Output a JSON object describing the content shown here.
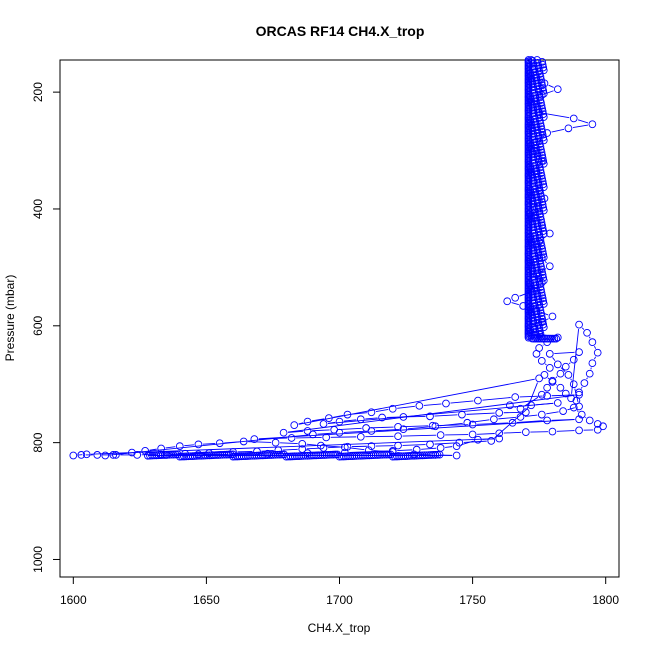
{
  "chart_data": {
    "type": "scatter",
    "title": "ORCAS RF14 CH4.X_trop",
    "xlabel": "CH4.X_trop",
    "ylabel": "Pressure (mbar)",
    "xlim": [
      1595,
      1805
    ],
    "ylim": [
      1030,
      145
    ],
    "y_reversed": true,
    "xticks": [
      1600,
      1650,
      1700,
      1750,
      1800
    ],
    "yticks": [
      200,
      400,
      600,
      800,
      1000
    ],
    "grid": false,
    "legend": "none",
    "point_style": "open-circle",
    "color": "#0000ff",
    "series": [
      {
        "points": [
          [
            1772,
            145
          ],
          [
            1773,
            160
          ],
          [
            1774,
            175
          ],
          [
            1777,
            185
          ],
          [
            1782,
            195
          ],
          [
            1776,
            205
          ],
          [
            1773,
            220
          ],
          [
            1775,
            235
          ],
          [
            1788,
            245
          ],
          [
            1795,
            255
          ],
          [
            1786,
            262
          ],
          [
            1778,
            270
          ],
          [
            1774,
            285
          ],
          [
            1773,
            300
          ],
          [
            1776,
            318
          ],
          [
            1774,
            335
          ],
          [
            1773,
            352
          ],
          [
            1775,
            368
          ],
          [
            1777,
            382
          ],
          [
            1774,
            398
          ],
          [
            1773,
            414
          ],
          [
            1776,
            428
          ],
          [
            1779,
            442
          ],
          [
            1775,
            456
          ],
          [
            1773,
            470
          ],
          [
            1776,
            484
          ],
          [
            1779,
            498
          ],
          [
            1774,
            512
          ],
          [
            1776,
            526
          ],
          [
            1773,
            540
          ],
          [
            1766,
            552
          ],
          [
            1763,
            558
          ],
          [
            1769,
            566
          ],
          [
            1774,
            574
          ],
          [
            1780,
            584
          ],
          [
            1776,
            594
          ],
          [
            1773,
            604
          ],
          [
            1775,
            614
          ],
          [
            1782,
            620
          ],
          [
            1778,
            628
          ],
          [
            1775,
            638
          ],
          [
            1774,
            648
          ],
          [
            1776,
            660
          ],
          [
            1779,
            672
          ],
          [
            1777,
            684
          ],
          [
            1780,
            696
          ],
          [
            1783,
            706
          ],
          [
            1785,
            716
          ],
          [
            1787,
            724
          ],
          [
            1790,
            598
          ],
          [
            1793,
            612
          ],
          [
            1795,
            628
          ],
          [
            1797,
            646
          ],
          [
            1795,
            664
          ],
          [
            1794,
            682
          ],
          [
            1792,
            698
          ],
          [
            1790,
            714
          ],
          [
            1789,
            728
          ],
          [
            1788,
            740
          ],
          [
            1791,
            752
          ],
          [
            1794,
            762
          ],
          [
            1797,
            768
          ],
          [
            1799,
            772
          ],
          [
            1797,
            778
          ],
          [
            1790,
            779
          ],
          [
            1780,
            781
          ],
          [
            1770,
            782
          ],
          [
            1760,
            784
          ],
          [
            1750,
            786
          ],
          [
            1738,
            787
          ],
          [
            1722,
            789
          ],
          [
            1708,
            790
          ],
          [
            1695,
            791
          ],
          [
            1682,
            792
          ],
          [
            1668,
            794
          ],
          [
            1790,
            760
          ],
          [
            1778,
            762
          ],
          [
            1765,
            766
          ],
          [
            1750,
            769
          ],
          [
            1735,
            771
          ],
          [
            1722,
            773
          ],
          [
            1710,
            775
          ],
          [
            1698,
            778
          ],
          [
            1688,
            780
          ],
          [
            1679,
            783
          ],
          [
            1790,
            718
          ],
          [
            1778,
            720
          ],
          [
            1766,
            722
          ],
          [
            1752,
            728
          ],
          [
            1740,
            733
          ],
          [
            1730,
            737
          ],
          [
            1720,
            742
          ],
          [
            1712,
            748
          ],
          [
            1703,
            752
          ],
          [
            1696,
            758
          ],
          [
            1688,
            764
          ],
          [
            1683,
            770
          ],
          [
            1775,
            690
          ],
          [
            1770,
            748
          ],
          [
            1760,
            749
          ],
          [
            1746,
            752
          ],
          [
            1734,
            755
          ],
          [
            1724,
            756
          ],
          [
            1716,
            757
          ],
          [
            1708,
            760
          ],
          [
            1700,
            764
          ],
          [
            1694,
            768
          ],
          [
            1782,
            732
          ],
          [
            1772,
            736
          ],
          [
            1757,
            797
          ],
          [
            1745,
            800
          ],
          [
            1734,
            803
          ],
          [
            1722,
            805
          ],
          [
            1712,
            806
          ],
          [
            1703,
            807
          ],
          [
            1694,
            809
          ],
          [
            1686,
            811
          ],
          [
            1677,
            813
          ],
          [
            1669,
            815
          ],
          [
            1660,
            816
          ],
          [
            1651,
            818
          ],
          [
            1642,
            819
          ],
          [
            1633,
            820
          ],
          [
            1624,
            821
          ],
          [
            1616,
            821
          ],
          [
            1609,
            821
          ],
          [
            1603,
            821
          ],
          [
            1600,
            822
          ],
          [
            1605,
            820
          ],
          [
            1760,
            793
          ],
          [
            1752,
            795
          ],
          [
            1744,
            806
          ],
          [
            1738,
            809
          ],
          [
            1729,
            812
          ],
          [
            1720,
            814
          ],
          [
            1702,
            817
          ],
          [
            1688,
            818
          ],
          [
            1673,
            819
          ],
          [
            1660,
            820
          ],
          [
            1647,
            820
          ],
          [
            1635,
            821
          ],
          [
            1744,
            822
          ],
          [
            1736,
            821
          ],
          [
            1728,
            820
          ],
          [
            1720,
            816
          ],
          [
            1711,
            813
          ],
          [
            1702,
            808
          ],
          [
            1693,
            805
          ],
          [
            1686,
            802
          ],
          [
            1676,
            800
          ],
          [
            1664,
            798
          ],
          [
            1655,
            801
          ],
          [
            1647,
            803
          ],
          [
            1640,
            806
          ],
          [
            1633,
            810
          ],
          [
            1627,
            814
          ],
          [
            1622,
            817
          ],
          [
            1615,
            821
          ],
          [
            1612,
            822
          ],
          [
            1690,
            786
          ],
          [
            1700,
            783
          ],
          [
            1712,
            780
          ],
          [
            1724,
            777
          ],
          [
            1736,
            772
          ],
          [
            1748,
            766
          ],
          [
            1758,
            760
          ],
          [
            1768,
            756
          ],
          [
            1776,
            752
          ],
          [
            1784,
            746
          ],
          [
            1790,
            738
          ],
          [
            1788,
            700
          ],
          [
            1786,
            684
          ],
          [
            1782,
            666
          ],
          [
            1779,
            648
          ],
          [
            1790,
            645
          ],
          [
            1788,
            658
          ],
          [
            1785,
            670
          ],
          [
            1783,
            682
          ],
          [
            1780,
            694
          ],
          [
            1778,
            706
          ],
          [
            1776,
            718
          ],
          [
            1768,
            742
          ],
          [
            1764,
            736
          ]
        ]
      },
      {
        "dense_band_vertical": {
          "x_range": [
            1771,
            1778
          ],
          "y_range": [
            145,
            622
          ]
        },
        "dense_band_bottom": {
          "x_range": [
            1628,
            1738
          ],
          "y_range": [
            820,
            824
          ]
        }
      }
    ]
  }
}
